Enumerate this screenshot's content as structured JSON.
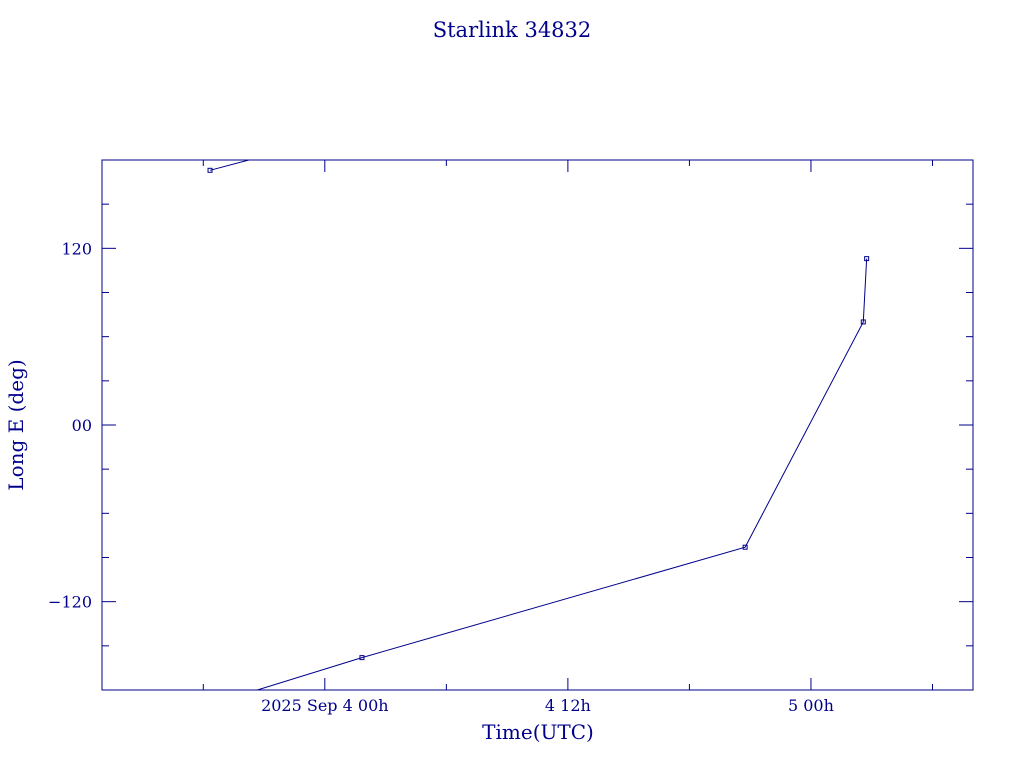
{
  "colors": {
    "ink": "#00008b",
    "background": "#ffffff"
  },
  "chart_data": {
    "type": "line",
    "title": "Starlink 34832",
    "xlabel": "Time(UTC)",
    "ylabel": "Long E (deg)",
    "x_tick_labels": [
      {
        "value": "2025-09-04T00:00",
        "label": "2025 Sep  4  00h"
      },
      {
        "value": "2025-09-04T12:00",
        "label": "4  12h"
      },
      {
        "value": "2025-09-05T00:00",
        "label": "5  00h"
      }
    ],
    "y_tick_labels": [
      {
        "value": 120,
        "label": "120"
      },
      {
        "value": 0,
        "label": "00"
      },
      {
        "value": -120,
        "label": "−120"
      }
    ],
    "xlim": [
      "2025-09-03T13:00",
      "2025-09-05T08:00"
    ],
    "ylim": [
      -180,
      180
    ],
    "grid": false,
    "series": [
      {
        "points": [
          {
            "x": "2025-09-03T18:20",
            "y": 173
          },
          {
            "x": "2025-09-03T20:15",
            "y": 180
          }
        ]
      },
      {
        "points": [
          {
            "x": "2025-09-03T20:40",
            "y": -180
          },
          {
            "x": "2025-09-04T01:50",
            "y": -158
          },
          {
            "x": "2025-09-04T20:45",
            "y": -83
          },
          {
            "x": "2025-09-05T02:35",
            "y": 70
          },
          {
            "x": "2025-09-05T02:45",
            "y": 113
          }
        ]
      }
    ]
  }
}
